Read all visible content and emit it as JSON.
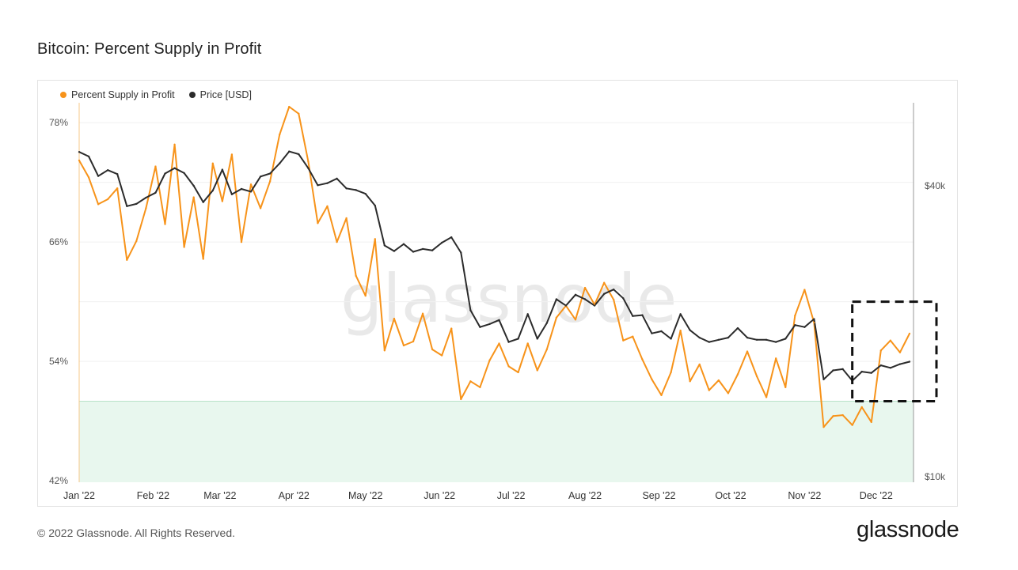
{
  "title": "Bitcoin: Percent Supply in Profit",
  "footer": "© 2022 Glassnode. All Rights Reserved.",
  "brand": "glassnode",
  "watermark": "glassnode",
  "colors": {
    "profit": "#f7931a",
    "price": "#2b2b2b",
    "band_fill": "#e8f7ee",
    "band_line": "#b9e2c9",
    "highlight": "#111111"
  },
  "chart_data": {
    "type": "line",
    "legend_position": "top-left",
    "legend": [
      "Percent Supply in Profit",
      "Price [USD]"
    ],
    "x_ticks": [
      "Jan '22",
      "Feb '22",
      "Mar '22",
      "Apr '22",
      "May '22",
      "Jun '22",
      "Jul '22",
      "Aug '22",
      "Sep '22",
      "Oct '22",
      "Nov '22",
      "Dec '22"
    ],
    "y_left": {
      "ticks": [
        "78%",
        "66%",
        "54%",
        "42%"
      ],
      "range": [
        42,
        79
      ]
    },
    "y_right": {
      "ticks": [
        "$40k",
        "$10k"
      ],
      "scale": "log",
      "range": [
        10000,
        60000
      ]
    },
    "threshold_percent": 50,
    "highlight_box": {
      "x_start": "2022-11-21",
      "x_end": "2022-12-15",
      "y_low_percent": 50,
      "y_high_percent": 60
    },
    "series": [
      {
        "name": "Percent Supply in Profit",
        "axis": "left",
        "x": [
          "2022-01-01",
          "2022-01-05",
          "2022-01-09",
          "2022-01-13",
          "2022-01-17",
          "2022-01-21",
          "2022-01-25",
          "2022-01-29",
          "2022-02-02",
          "2022-02-06",
          "2022-02-10",
          "2022-02-14",
          "2022-02-18",
          "2022-02-22",
          "2022-02-26",
          "2022-03-02",
          "2022-03-06",
          "2022-03-10",
          "2022-03-14",
          "2022-03-18",
          "2022-03-22",
          "2022-03-26",
          "2022-03-30",
          "2022-04-03",
          "2022-04-07",
          "2022-04-11",
          "2022-04-15",
          "2022-04-19",
          "2022-04-23",
          "2022-04-27",
          "2022-05-01",
          "2022-05-05",
          "2022-05-09",
          "2022-05-13",
          "2022-05-17",
          "2022-05-21",
          "2022-05-25",
          "2022-05-29",
          "2022-06-02",
          "2022-06-06",
          "2022-06-10",
          "2022-06-14",
          "2022-06-18",
          "2022-06-22",
          "2022-06-26",
          "2022-06-30",
          "2022-07-04",
          "2022-07-08",
          "2022-07-12",
          "2022-07-16",
          "2022-07-20",
          "2022-07-24",
          "2022-07-28",
          "2022-08-01",
          "2022-08-05",
          "2022-08-09",
          "2022-08-13",
          "2022-08-17",
          "2022-08-21",
          "2022-08-25",
          "2022-08-29",
          "2022-09-02",
          "2022-09-06",
          "2022-09-10",
          "2022-09-14",
          "2022-09-18",
          "2022-09-22",
          "2022-09-26",
          "2022-09-30",
          "2022-10-04",
          "2022-10-08",
          "2022-10-12",
          "2022-10-16",
          "2022-10-20",
          "2022-10-24",
          "2022-10-28",
          "2022-11-01",
          "2022-11-05",
          "2022-11-09",
          "2022-11-13",
          "2022-11-17",
          "2022-11-21",
          "2022-11-25",
          "2022-11-29",
          "2022-12-03",
          "2022-12-07",
          "2022-12-11",
          "2022-12-15"
        ],
        "values": [
          74.2,
          72.5,
          69.8,
          70.3,
          71.4,
          64.2,
          66.1,
          69.4,
          73.6,
          67.8,
          75.8,
          65.5,
          70.5,
          64.3,
          73.9,
          70.1,
          74.8,
          66.0,
          71.8,
          69.4,
          72.1,
          76.8,
          79.6,
          78.9,
          74.1,
          67.9,
          69.6,
          66.0,
          68.4,
          62.6,
          60.6,
          66.3,
          55.1,
          58.3,
          55.6,
          56.0,
          58.8,
          55.2,
          54.6,
          57.3,
          50.2,
          52.0,
          51.4,
          54.1,
          55.8,
          53.5,
          52.9,
          55.8,
          53.1,
          55.2,
          58.4,
          59.6,
          58.2,
          61.4,
          59.7,
          61.9,
          60.2,
          56.1,
          56.5,
          54.2,
          52.2,
          50.6,
          52.9,
          57.1,
          52.0,
          53.7,
          51.1,
          52.1,
          50.8,
          52.7,
          55.0,
          52.5,
          50.4,
          54.3,
          51.4,
          58.6,
          61.2,
          57.9,
          47.4,
          48.5,
          48.6,
          47.6,
          49.4,
          47.9,
          55.1,
          56.1,
          54.9,
          56.8
        ]
      },
      {
        "name": "Price [USD]",
        "axis": "right",
        "x": [
          "2022-01-01",
          "2022-01-05",
          "2022-01-09",
          "2022-01-13",
          "2022-01-17",
          "2022-01-21",
          "2022-01-25",
          "2022-01-29",
          "2022-02-02",
          "2022-02-06",
          "2022-02-10",
          "2022-02-14",
          "2022-02-18",
          "2022-02-22",
          "2022-02-26",
          "2022-03-02",
          "2022-03-06",
          "2022-03-10",
          "2022-03-14",
          "2022-03-18",
          "2022-03-22",
          "2022-03-26",
          "2022-03-30",
          "2022-04-03",
          "2022-04-07",
          "2022-04-11",
          "2022-04-15",
          "2022-04-19",
          "2022-04-23",
          "2022-04-27",
          "2022-05-01",
          "2022-05-05",
          "2022-05-09",
          "2022-05-13",
          "2022-05-17",
          "2022-05-21",
          "2022-05-25",
          "2022-05-29",
          "2022-06-02",
          "2022-06-06",
          "2022-06-10",
          "2022-06-14",
          "2022-06-18",
          "2022-06-22",
          "2022-06-26",
          "2022-06-30",
          "2022-07-04",
          "2022-07-08",
          "2022-07-12",
          "2022-07-16",
          "2022-07-20",
          "2022-07-24",
          "2022-07-28",
          "2022-08-01",
          "2022-08-05",
          "2022-08-09",
          "2022-08-13",
          "2022-08-17",
          "2022-08-21",
          "2022-08-25",
          "2022-08-29",
          "2022-09-02",
          "2022-09-06",
          "2022-09-10",
          "2022-09-14",
          "2022-09-18",
          "2022-09-22",
          "2022-09-26",
          "2022-09-30",
          "2022-10-04",
          "2022-10-08",
          "2022-10-12",
          "2022-10-16",
          "2022-10-20",
          "2022-10-24",
          "2022-10-28",
          "2022-11-01",
          "2022-11-05",
          "2022-11-09",
          "2022-11-13",
          "2022-11-17",
          "2022-11-21",
          "2022-11-25",
          "2022-11-29",
          "2022-12-03",
          "2022-12-07",
          "2022-12-11",
          "2022-12-15"
        ],
        "values": [
          47000,
          46000,
          41900,
          43100,
          42300,
          36300,
          36700,
          37800,
          38700,
          42400,
          43500,
          42500,
          40000,
          37000,
          39100,
          43200,
          38400,
          39400,
          38900,
          41800,
          42400,
          44500,
          47100,
          46500,
          43500,
          40100,
          40500,
          41400,
          39500,
          39200,
          38500,
          36400,
          30100,
          29300,
          30300,
          29200,
          29600,
          29400,
          30500,
          31300,
          29100,
          22100,
          20400,
          20700,
          21100,
          19000,
          19300,
          21700,
          19300,
          20800,
          23300,
          22600,
          23800,
          23300,
          22600,
          23900,
          24400,
          23400,
          21500,
          21600,
          19800,
          20000,
          19300,
          21700,
          20100,
          19400,
          19000,
          19200,
          19400,
          20300,
          19400,
          19200,
          19200,
          19000,
          19300,
          20600,
          20400,
          21200,
          15900,
          16600,
          16700,
          15800,
          16500,
          16400,
          17000,
          16800,
          17100,
          17300
        ]
      }
    ]
  }
}
